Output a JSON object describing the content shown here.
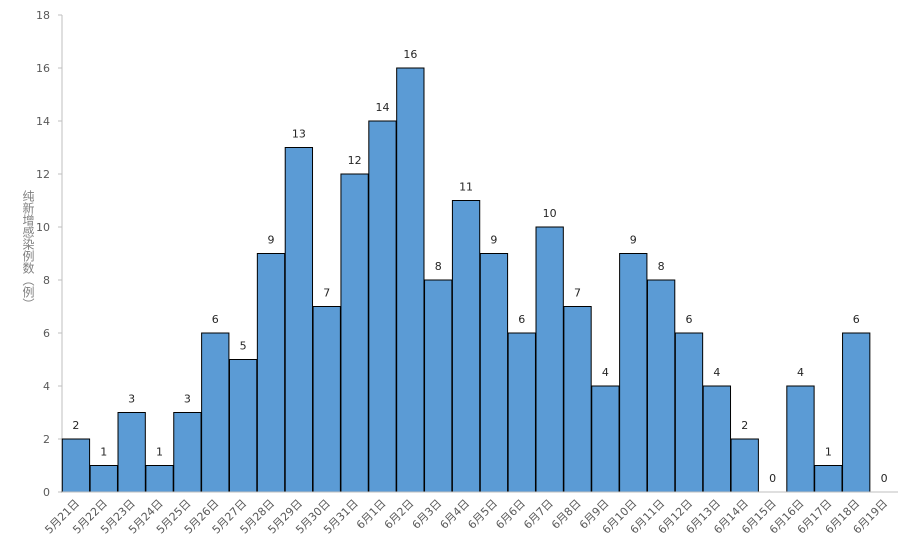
{
  "chart_data": {
    "type": "bar",
    "ylabel": "纯新增感染例数（例）",
    "ylim": [
      0,
      18
    ],
    "yticks": [
      0,
      2,
      4,
      6,
      8,
      10,
      12,
      14,
      16,
      18
    ],
    "categories": [
      "5月21日",
      "5月22日",
      "5月23日",
      "5月24日",
      "5月25日",
      "5月26日",
      "5月27日",
      "5月28日",
      "5月29日",
      "5月30日",
      "5月31日",
      "6月1日",
      "6月2日",
      "6月3日",
      "6月4日",
      "6月5日",
      "6月6日",
      "6月7日",
      "6月8日",
      "6月9日",
      "6月10日",
      "6月11日",
      "6月12日",
      "6月13日",
      "6月14日",
      "6月15日",
      "6月16日",
      "6月17日",
      "6月18日",
      "6月19日"
    ],
    "values": [
      2,
      1,
      3,
      1,
      3,
      6,
      5,
      9,
      13,
      7,
      12,
      14,
      16,
      8,
      11,
      9,
      6,
      10,
      7,
      4,
      9,
      8,
      6,
      4,
      2,
      0,
      4,
      1,
      6,
      0
    ],
    "colors": {
      "bar": "#5b9bd5",
      "bar_border": "#000000",
      "axis": "#bfbfbf"
    },
    "grid": false,
    "legend": "none"
  }
}
